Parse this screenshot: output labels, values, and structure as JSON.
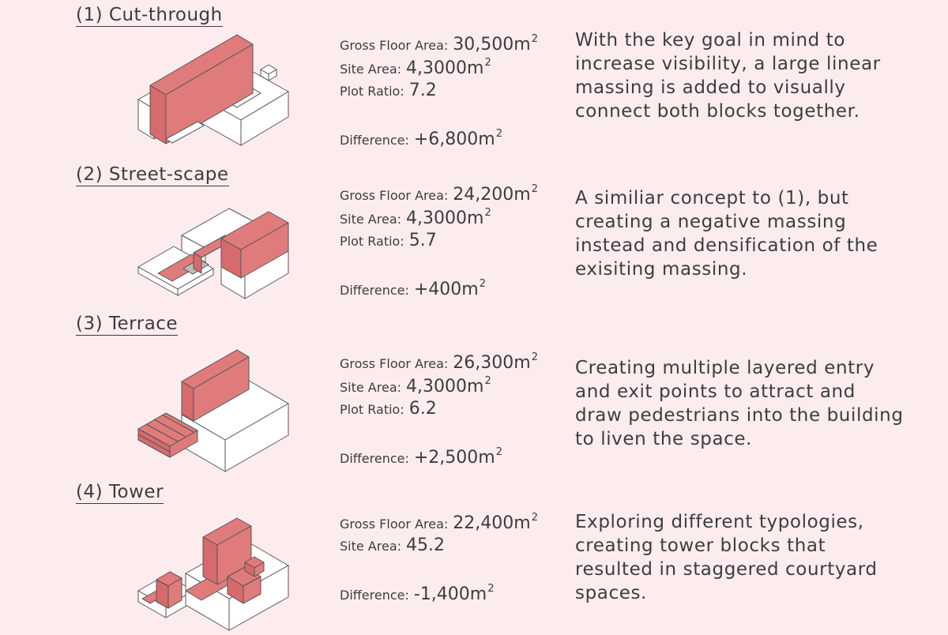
{
  "sections": [
    {
      "title": "(1) Cut-through",
      "gfa_label": "Gross Floor Area:",
      "gfa_value": "30,500m",
      "gfa_unit": "2",
      "site_label": "Site Area:",
      "site_value": "4,3000m",
      "site_unit": "2",
      "ratio_label": "Plot Ratio:",
      "ratio_value": "7.2",
      "diff_label": "Difference:",
      "diff_value": "+6,800m",
      "diff_unit": "2",
      "description": "With the key goal in mind to increase visibility, a large linear massing is added to visually connect both blocks together."
    },
    {
      "title": "(2) Street-scape",
      "gfa_label": "Gross Floor Area:",
      "gfa_value": "24,200m",
      "gfa_unit": "2",
      "site_label": "Site Area:",
      "site_value": "4,3000m",
      "site_unit": "2",
      "ratio_label": "Plot Ratio:",
      "ratio_value": "5.7",
      "diff_label": "Difference:",
      "diff_value": "+400m",
      "diff_unit": "2",
      "description": "A similiar concept to (1), but creating a negative massing instead and densification of the exisiting massing."
    },
    {
      "title": "(3) Terrace",
      "gfa_label": "Gross Floor Area:",
      "gfa_value": "26,300m",
      "gfa_unit": "2",
      "site_label": "Site Area:",
      "site_value": "4,3000m",
      "site_unit": "2",
      "ratio_label": "Plot Ratio:",
      "ratio_value": "6.2",
      "diff_label": "Difference:",
      "diff_value": "+2,500m",
      "diff_unit": "2",
      "description": "Creating multiple layered entry and exit points to attract and draw pedestrians into the building to liven the space."
    },
    {
      "title": "(4) Tower",
      "gfa_label": "Gross Floor Area:",
      "gfa_value": "22,400m",
      "gfa_unit": "2",
      "site_label": "Site Area:",
      "site_value": "45.2",
      "diff_label": "Difference:",
      "diff_value": "-1,400m",
      "diff_unit": "2",
      "description": "Exploring different typologies, creating tower blocks that resulted in staggered courtyard spaces."
    }
  ],
  "colors": {
    "background": "#fdeced",
    "massing_highlight": "#e07b7c",
    "text": "#3d3d3d"
  }
}
